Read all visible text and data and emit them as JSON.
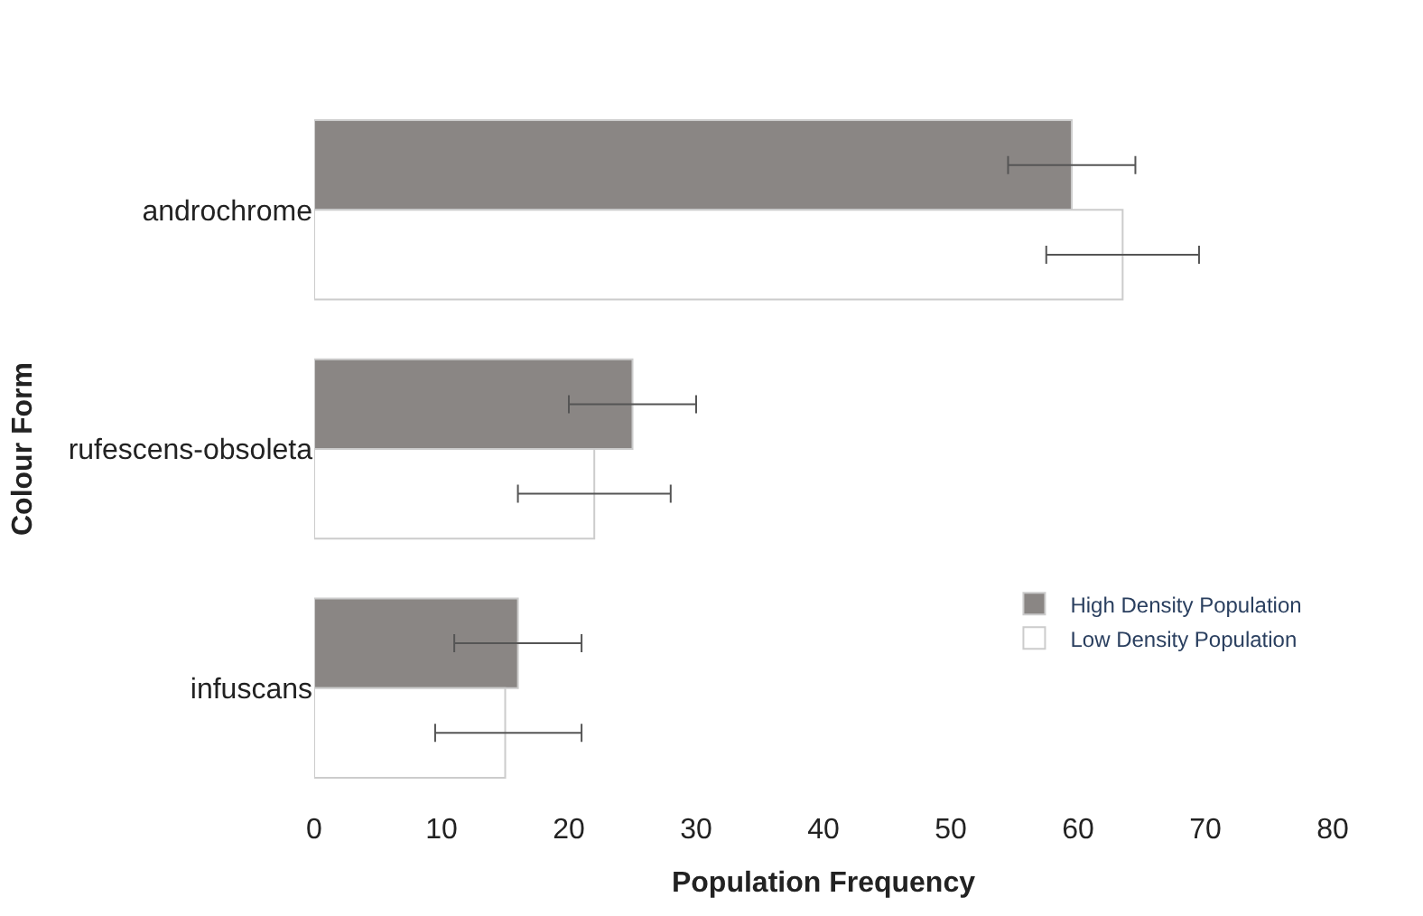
{
  "chart_data": {
    "type": "bar",
    "orientation": "horizontal",
    "xlabel": "Population Frequency",
    "ylabel": "Colour Form",
    "categories": [
      "androchrome",
      "rufescens-obsoleta",
      "infuscans"
    ],
    "series": [
      {
        "name": "High Density Population",
        "color": "#8a8684",
        "values": [
          59.5,
          25,
          16
        ],
        "errors": [
          5,
          5,
          5
        ]
      },
      {
        "name": "Low Density Population",
        "color": "#ffffff",
        "values": [
          63.5,
          22,
          15
        ],
        "errors": [
          6,
          6,
          [
            9.5,
            21
          ]
        ]
      }
    ],
    "xlim": [
      0,
      80
    ],
    "xticks": [
      0,
      10,
      20,
      30,
      40,
      50,
      60,
      70,
      80
    ],
    "legend": "bottom right"
  }
}
